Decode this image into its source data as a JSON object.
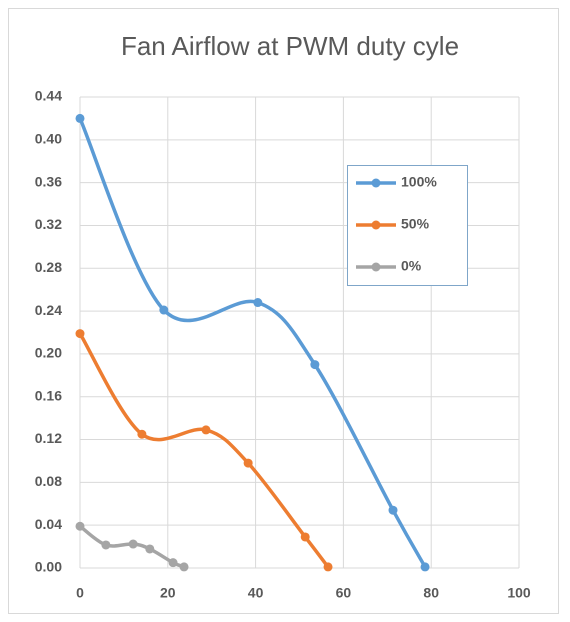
{
  "chart_data": {
    "type": "scatter",
    "title": "Fan Airflow at PWM duty cyle",
    "series": [
      {
        "name": "100%",
        "color": "#5b9bd5",
        "x": [
          0,
          19.1,
          40.5,
          53.5,
          71.3,
          78.6
        ],
        "values": [
          0.42,
          0.241,
          0.248,
          0.19,
          0.054,
          0.001
        ]
      },
      {
        "name": "50%",
        "color": "#ed7d31",
        "x": [
          0,
          14.1,
          28.7,
          38.3,
          51.3,
          56.5
        ],
        "values": [
          0.219,
          0.125,
          0.129,
          0.098,
          0.029,
          0.001
        ]
      },
      {
        "name": "0%",
        "color": "#a5a5a5",
        "x": [
          0,
          5.9,
          12.1,
          15.9,
          21.2,
          23.7
        ],
        "values": [
          0.039,
          0.0215,
          0.0224,
          0.0178,
          0.005,
          0.001
        ]
      }
    ],
    "xlim": [
      0,
      100
    ],
    "xticks": [
      0,
      20,
      40,
      60,
      80,
      100
    ],
    "ylim": [
      0,
      0.44
    ],
    "yticks": [
      {
        "value": 0,
        "label": "0.00"
      },
      {
        "value": 0.04,
        "label": "0.04"
      },
      {
        "value": 0.08,
        "label": "0.08"
      },
      {
        "value": 0.12,
        "label": "0.12"
      },
      {
        "value": 0.16,
        "label": "0.16"
      },
      {
        "value": 0.2,
        "label": "0.20"
      },
      {
        "value": 0.24,
        "label": "0.24"
      },
      {
        "value": 0.28,
        "label": "0.28"
      },
      {
        "value": 0.32,
        "label": "0.32"
      },
      {
        "value": 0.36,
        "label": "0.36"
      },
      {
        "value": 0.4,
        "label": "0.40"
      },
      {
        "value": 0.44,
        "label": "0.44"
      }
    ],
    "grid": true,
    "smooth": true
  }
}
